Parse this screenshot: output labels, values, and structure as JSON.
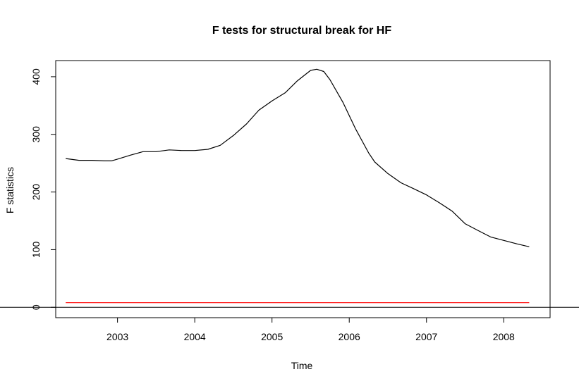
{
  "chart_data": {
    "type": "line",
    "title": "F tests for structural break for HF",
    "xlabel": "Time",
    "ylabel": "F statistics",
    "xlim": [
      2002.2,
      2008.6
    ],
    "ylim": [
      -18,
      428
    ],
    "x_ticks": [
      2003,
      2004,
      2005,
      2006,
      2007,
      2008
    ],
    "y_ticks": [
      0,
      100,
      200,
      300,
      400
    ],
    "grid": false,
    "legend": "none",
    "series": [
      {
        "color": "#000000",
        "x": [
          2002.33,
          2002.5,
          2002.67,
          2002.83,
          2002.92,
          2003.0,
          2003.17,
          2003.33,
          2003.5,
          2003.67,
          2003.83,
          2004.0,
          2004.17,
          2004.33,
          2004.5,
          2004.67,
          2004.83,
          2005.0,
          2005.17,
          2005.33,
          2005.5,
          2005.58,
          2005.67,
          2005.75,
          2005.92,
          2006.08,
          2006.25,
          2006.33,
          2006.5,
          2006.67,
          2006.83,
          2007.0,
          2007.17,
          2007.33,
          2007.5,
          2007.67,
          2007.83,
          2008.0,
          2008.17,
          2008.33
        ],
        "y": [
          258,
          255,
          255,
          254,
          254,
          257,
          264,
          270,
          270,
          273,
          272,
          272,
          274,
          281,
          298,
          318,
          342,
          358,
          372,
          393,
          411,
          413,
          409,
          395,
          355,
          310,
          268,
          252,
          232,
          216,
          206,
          195,
          181,
          167,
          145,
          133,
          122,
          116,
          110,
          105
        ]
      },
      {
        "color": "#ff0000",
        "x": [
          2002.33,
          2008.33
        ],
        "y": [
          8,
          8
        ]
      }
    ],
    "hline": {
      "y": 0,
      "color": "#000000"
    }
  }
}
